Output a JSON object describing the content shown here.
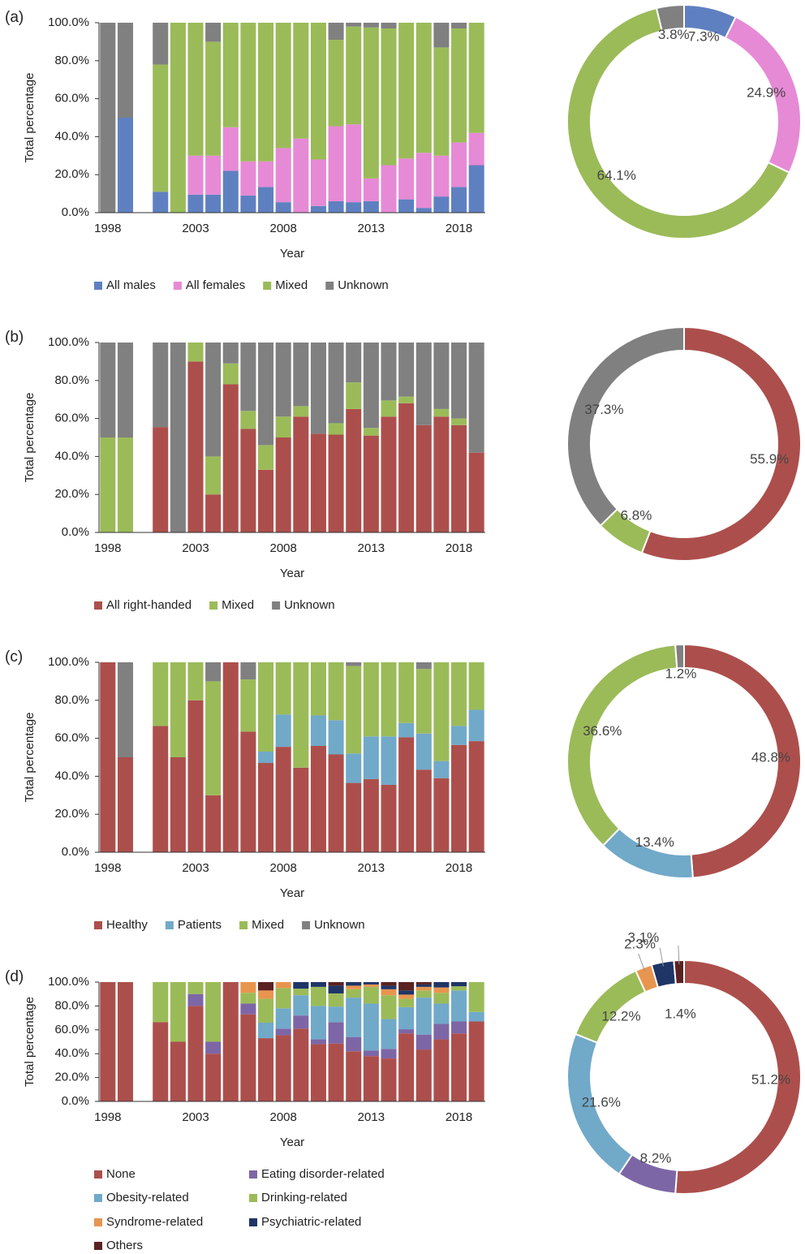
{
  "chart_data": [
    {
      "type": "bar",
      "label": "(a)",
      "x_label": "Year",
      "y_label": "Total percentage",
      "categories": [
        "1998",
        null,
        null,
        null,
        null,
        "2003",
        null,
        null,
        null,
        null,
        "2008",
        null,
        null,
        null,
        null,
        "2013",
        null,
        null,
        null,
        null,
        "2018",
        null
      ],
      "ylim": [
        0,
        100
      ],
      "yticks": [
        {
          "value": 0,
          "label": "0.0%"
        },
        {
          "value": 20,
          "label": "20.0%"
        },
        {
          "value": 40,
          "label": "40.0%"
        },
        {
          "value": 60,
          "label": "60.0%"
        },
        {
          "value": 80,
          "label": "80.0%"
        },
        {
          "value": 100,
          "label": "100.0%"
        }
      ],
      "series": [
        {
          "name": "All males",
          "color": "#5f80c0",
          "values": [
            0,
            50,
            null,
            11,
            0,
            9.5,
            9.5,
            22,
            9,
            13.5,
            5.5,
            0,
            3.5,
            6,
            5.5,
            6,
            0,
            7,
            2.5,
            8.5,
            13.5,
            25
          ]
        },
        {
          "name": "All females",
          "color": "#e68ad5",
          "values": [
            0,
            0,
            null,
            0,
            0,
            20.5,
            20.5,
            23,
            18,
            13.5,
            28.5,
            39,
            24.5,
            39.5,
            41,
            12,
            25,
            21.5,
            29,
            21.5,
            23.5,
            17
          ]
        },
        {
          "name": "Mixed",
          "color": "#9bbb59",
          "values": [
            0,
            0,
            null,
            67,
            100,
            70,
            60,
            55,
            73,
            73,
            66,
            61,
            72,
            45.5,
            51.5,
            79.5,
            72,
            71.5,
            68.5,
            57,
            60,
            58
          ]
        },
        {
          "name": "Unknown",
          "color": "#808080",
          "values": [
            100,
            50,
            null,
            22,
            0,
            0,
            10,
            0,
            0,
            0,
            0,
            0,
            0,
            9,
            2,
            2.5,
            3,
            0,
            0,
            13,
            3,
            0
          ]
        }
      ]
    },
    {
      "type": "pie",
      "values": [
        7.3,
        24.9,
        64.1,
        3.8
      ],
      "value_labels": [
        "7.3%",
        "24.9%",
        "64.1%",
        "3.8%"
      ],
      "colors": [
        "#5f80c0",
        "#e68ad5",
        "#9bbb59",
        "#808080"
      ]
    },
    {
      "type": "bar",
      "label": "(b)",
      "x_label": "Year",
      "y_label": "Total percentage",
      "categories": [
        "1998",
        null,
        null,
        null,
        null,
        "2003",
        null,
        null,
        null,
        null,
        "2008",
        null,
        null,
        null,
        null,
        "2013",
        null,
        null,
        null,
        null,
        "2018",
        null
      ],
      "ylim": [
        0,
        100
      ],
      "yticks": [
        {
          "value": 0,
          "label": "0.0%"
        },
        {
          "value": 20,
          "label": "20.0%"
        },
        {
          "value": 40,
          "label": "40.0%"
        },
        {
          "value": 60,
          "label": "60.0%"
        },
        {
          "value": 80,
          "label": "80.0%"
        },
        {
          "value": 100,
          "label": "100.0%"
        }
      ],
      "series": [
        {
          "name": "All right-handed",
          "color": "#ac4f4c",
          "values": [
            0,
            0,
            null,
            55.5,
            0,
            90,
            20,
            78,
            54.5,
            33,
            50,
            61,
            52,
            51.5,
            65,
            51,
            61,
            68,
            56.5,
            61,
            56.5,
            42
          ]
        },
        {
          "name": "Mixed",
          "color": "#9bbb59",
          "values": [
            50,
            50,
            null,
            0,
            0,
            10,
            20,
            11,
            9.5,
            13,
            11,
            5.5,
            0,
            6,
            14,
            4,
            8.5,
            3.5,
            0,
            4,
            3.5,
            0
          ]
        },
        {
          "name": "Unknown",
          "color": "#808080",
          "values": [
            50,
            50,
            null,
            44.5,
            100,
            0,
            60,
            11,
            36,
            54,
            39,
            33.5,
            48,
            42.5,
            21,
            45,
            30.5,
            28.5,
            43.5,
            35,
            40,
            58
          ]
        }
      ]
    },
    {
      "type": "pie",
      "values": [
        55.9,
        6.8,
        37.3
      ],
      "value_labels": [
        "55.9%",
        "6.8%",
        "37.3%"
      ],
      "colors": [
        "#ac4f4c",
        "#9bbb59",
        "#808080"
      ]
    },
    {
      "type": "bar",
      "label": "(c)",
      "x_label": "Year",
      "y_label": "Total percentage",
      "categories": [
        "1998",
        null,
        null,
        null,
        null,
        "2003",
        null,
        null,
        null,
        null,
        "2008",
        null,
        null,
        null,
        null,
        "2013",
        null,
        null,
        null,
        null,
        "2018",
        null
      ],
      "ylim": [
        0,
        100
      ],
      "yticks": [
        {
          "value": 0,
          "label": "0.0%"
        },
        {
          "value": 20,
          "label": "20.0%"
        },
        {
          "value": 40,
          "label": "40.0%"
        },
        {
          "value": 60,
          "label": "60.0%"
        },
        {
          "value": 80,
          "label": "80.0%"
        },
        {
          "value": 100,
          "label": "100.0%"
        }
      ],
      "series": [
        {
          "name": "Healthy",
          "color": "#ac4f4c",
          "values": [
            100,
            50,
            null,
            66.5,
            50,
            80,
            30,
            100,
            63.5,
            47,
            55.5,
            44.5,
            56,
            51.5,
            36.5,
            38.5,
            35.5,
            60.5,
            43.5,
            39,
            56.5,
            58.5
          ]
        },
        {
          "name": "Patients",
          "color": "#71a9c9",
          "values": [
            0,
            0,
            null,
            0,
            0,
            0,
            0,
            0,
            0,
            6,
            17,
            0,
            16,
            18,
            15.5,
            22.5,
            25.5,
            7.5,
            19,
            9,
            10,
            16.5
          ]
        },
        {
          "name": "Mixed",
          "color": "#9bbb59",
          "values": [
            0,
            0,
            null,
            33.5,
            50,
            20,
            60,
            0,
            27.5,
            47,
            27.5,
            55.5,
            28,
            30.5,
            46,
            39,
            39,
            32,
            34,
            52,
            33.5,
            25
          ]
        },
        {
          "name": "Unknown",
          "color": "#808080",
          "values": [
            0,
            50,
            null,
            0,
            0,
            0,
            10,
            0,
            9,
            0,
            0,
            0,
            0,
            0,
            2,
            0,
            0,
            0,
            3.5,
            0,
            0,
            0
          ]
        }
      ]
    },
    {
      "type": "pie",
      "values": [
        48.8,
        13.4,
        36.6,
        1.2
      ],
      "value_labels": [
        "48.8%",
        "13.4%",
        "36.6%",
        "1.2%"
      ],
      "colors": [
        "#ac4f4c",
        "#71a9c9",
        "#9bbb59",
        "#808080"
      ]
    },
    {
      "type": "bar",
      "label": "(d)",
      "x_label": "Year",
      "y_label": "Total percentage",
      "categories": [
        "1998",
        null,
        null,
        null,
        null,
        "2003",
        null,
        null,
        null,
        null,
        "2008",
        null,
        null,
        null,
        null,
        "2013",
        null,
        null,
        null,
        null,
        "2018",
        null
      ],
      "ylim": [
        0,
        100
      ],
      "yticks": [
        {
          "value": 0,
          "label": "0.0%"
        },
        {
          "value": 20,
          "label": "20.0%"
        },
        {
          "value": 40,
          "label": "40.0%"
        },
        {
          "value": 60,
          "label": "60.0%"
        },
        {
          "value": 80,
          "label": "80.0%"
        },
        {
          "value": 100,
          "label": "100.0%"
        }
      ],
      "series": [
        {
          "name": "None",
          "color": "#ac4f4c",
          "values": [
            100,
            100,
            null,
            66.5,
            50,
            80,
            40,
            100,
            73,
            53,
            55.5,
            61,
            48,
            48.5,
            42,
            38,
            36,
            57,
            43.5,
            52,
            57,
            67
          ]
        },
        {
          "name": "Eating disorder-related",
          "color": "#7d66a6",
          "values": [
            0,
            0,
            null,
            0,
            0,
            10,
            10,
            0,
            9,
            0,
            5.5,
            11,
            4,
            18,
            12,
            4.5,
            8,
            3.5,
            12.5,
            13,
            10,
            0
          ]
        },
        {
          "name": "Obesity-related",
          "color": "#71a9c9",
          "values": [
            0,
            0,
            null,
            0,
            0,
            0,
            0,
            0,
            0,
            13,
            17,
            17,
            28,
            13,
            33,
            39.5,
            25,
            18.5,
            31,
            17,
            26,
            8
          ]
        },
        {
          "name": "Drinking-related",
          "color": "#9bbb59",
          "values": [
            0,
            0,
            null,
            33.5,
            50,
            10,
            50,
            0,
            9,
            20,
            17,
            5.5,
            16,
            11,
            7,
            14,
            20,
            7,
            6,
            9,
            3.5,
            25
          ]
        },
        {
          "name": "Syndrome-related",
          "color": "#e8954f",
          "values": [
            0,
            0,
            null,
            0,
            0,
            0,
            0,
            0,
            9,
            7,
            5,
            0,
            0,
            0,
            3,
            2,
            5,
            3.5,
            3,
            4.5,
            0,
            0
          ]
        },
        {
          "name": "Psychiatric-related",
          "color": "#1f3566",
          "values": [
            0,
            0,
            null,
            0,
            0,
            0,
            0,
            0,
            0,
            0,
            0,
            5.5,
            4,
            6.5,
            3,
            2,
            3,
            3.5,
            2,
            4.5,
            3.5,
            0
          ]
        },
        {
          "name": "Others",
          "color": "#5b2222",
          "values": [
            0,
            0,
            null,
            0,
            0,
            0,
            0,
            0,
            0,
            7,
            0,
            0,
            0,
            3,
            0,
            0,
            3,
            7,
            2,
            0,
            0,
            0
          ]
        }
      ]
    },
    {
      "type": "pie",
      "values": [
        51.2,
        8.2,
        21.6,
        12.2,
        2.3,
        3.1,
        1.4
      ],
      "value_labels": [
        "51.2%",
        "8.2%",
        "21.6%",
        "12.2%",
        "2.3%",
        "3.1%",
        "1.4%"
      ],
      "colors": [
        "#ac4f4c",
        "#7d66a6",
        "#71a9c9",
        "#9bbb59",
        "#e8954f",
        "#1f3566",
        "#5b2222"
      ]
    }
  ]
}
